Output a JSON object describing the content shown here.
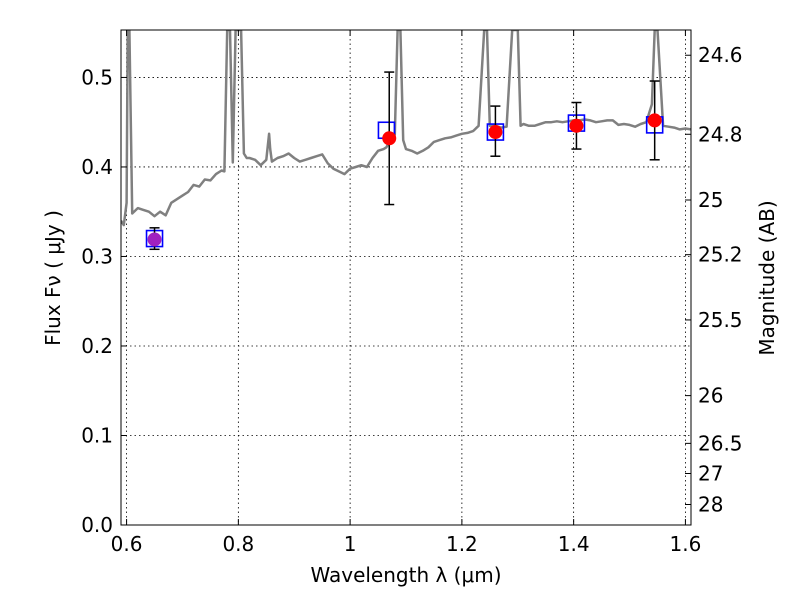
{
  "chart_data": {
    "type": "scatter",
    "xlabel": "Wavelength  λ (μm)",
    "ylabel_left": "Flux  Fν  ( μJy )",
    "ylabel_right": "Magnitude (AB)",
    "xlim": [
      0.59,
      1.61
    ],
    "ylim": [
      0.0,
      0.553
    ],
    "x_ticks": [
      0.6,
      0.8,
      1.0,
      1.2,
      1.4,
      1.6
    ],
    "x_tick_labels": [
      "0.6",
      "0.8",
      "1",
      "1.2",
      "1.4",
      "1.6"
    ],
    "y_ticks": [
      0.0,
      0.1,
      0.2,
      0.3,
      0.4,
      0.5
    ],
    "y_tick_labels": [
      "0.0",
      "0.1",
      "0.2",
      "0.3",
      "0.4",
      "0.5"
    ],
    "right_ticks": [
      {
        "label": "24.6",
        "mag": 24.6
      },
      {
        "label": "24.8",
        "mag": 24.8
      },
      {
        "label": "25",
        "mag": 25.0
      },
      {
        "label": "25.2",
        "mag": 25.2
      },
      {
        "label": "25.5",
        "mag": 25.5
      },
      {
        "label": "26",
        "mag": 26.0
      },
      {
        "label": "26.5",
        "mag": 26.5
      },
      {
        "label": "27",
        "mag": 27.0
      },
      {
        "label": "28",
        "mag": 28.0
      }
    ],
    "grid": true,
    "colors": {
      "spectrum": "#808080",
      "observed": "#ff0000",
      "observed_first": "#a020c0",
      "model_box": "#0000ff",
      "errorbar": "#000000"
    },
    "series": [
      {
        "name": "model spectrum",
        "kind": "line",
        "x": [
          0.59,
          0.595,
          0.6,
          0.602,
          0.605,
          0.61,
          0.62,
          0.63,
          0.64,
          0.65,
          0.66,
          0.67,
          0.68,
          0.69,
          0.7,
          0.71,
          0.72,
          0.73,
          0.74,
          0.75,
          0.76,
          0.77,
          0.775,
          0.78,
          0.785,
          0.79,
          0.795,
          0.8,
          0.805,
          0.81,
          0.815,
          0.82,
          0.83,
          0.84,
          0.85,
          0.855,
          0.857,
          0.86,
          0.87,
          0.88,
          0.89,
          0.9,
          0.91,
          0.92,
          0.93,
          0.94,
          0.95,
          0.96,
          0.97,
          0.98,
          0.99,
          1.0,
          1.01,
          1.02,
          1.03,
          1.04,
          1.05,
          1.06,
          1.065,
          1.07,
          1.08,
          1.085,
          1.09,
          1.095,
          1.1,
          1.11,
          1.12,
          1.13,
          1.14,
          1.15,
          1.16,
          1.17,
          1.18,
          1.19,
          1.2,
          1.21,
          1.22,
          1.23,
          1.24,
          1.245,
          1.25,
          1.26,
          1.27,
          1.28,
          1.29,
          1.3,
          1.305,
          1.31,
          1.32,
          1.33,
          1.34,
          1.35,
          1.36,
          1.37,
          1.38,
          1.39,
          1.4,
          1.41,
          1.42,
          1.43,
          1.44,
          1.45,
          1.46,
          1.47,
          1.48,
          1.49,
          1.5,
          1.51,
          1.52,
          1.53,
          1.54,
          1.545,
          1.55,
          1.56,
          1.57,
          1.58,
          1.59,
          1.6,
          1.61
        ],
        "y": [
          0.34,
          0.335,
          0.36,
          0.553,
          0.553,
          0.348,
          0.354,
          0.352,
          0.35,
          0.345,
          0.35,
          0.346,
          0.36,
          0.364,
          0.368,
          0.372,
          0.38,
          0.378,
          0.386,
          0.385,
          0.392,
          0.396,
          0.395,
          0.553,
          0.553,
          0.405,
          0.553,
          0.553,
          0.553,
          0.415,
          0.41,
          0.41,
          0.408,
          0.402,
          0.408,
          0.437,
          0.42,
          0.406,
          0.41,
          0.412,
          0.415,
          0.41,
          0.406,
          0.408,
          0.41,
          0.412,
          0.414,
          0.404,
          0.398,
          0.395,
          0.392,
          0.398,
          0.4,
          0.402,
          0.4,
          0.41,
          0.418,
          0.42,
          0.422,
          0.428,
          0.436,
          0.553,
          0.553,
          0.43,
          0.42,
          0.418,
          0.415,
          0.418,
          0.422,
          0.428,
          0.43,
          0.432,
          0.433,
          0.435,
          0.437,
          0.438,
          0.44,
          0.446,
          0.553,
          0.553,
          0.446,
          0.446,
          0.444,
          0.445,
          0.553,
          0.553,
          0.446,
          0.448,
          0.446,
          0.446,
          0.448,
          0.45,
          0.45,
          0.451,
          0.45,
          0.451,
          0.452,
          0.452,
          0.453,
          0.452,
          0.45,
          0.451,
          0.452,
          0.452,
          0.447,
          0.448,
          0.447,
          0.445,
          0.448,
          0.45,
          0.47,
          0.553,
          0.553,
          0.446,
          0.445,
          0.444,
          0.442,
          0.443,
          0.442
        ]
      },
      {
        "name": "model photometry",
        "kind": "box",
        "x": [
          0.65,
          1.065,
          1.26,
          1.405,
          1.545
        ],
        "y": [
          0.32,
          0.441,
          0.439,
          0.449,
          0.447
        ]
      },
      {
        "name": "observed photometry",
        "kind": "points",
        "x": [
          0.65,
          1.07,
          1.26,
          1.405,
          1.545
        ],
        "y": [
          0.319,
          0.432,
          0.439,
          0.446,
          0.452
        ],
        "yerr_low": [
          0.011,
          0.074,
          0.027,
          0.026,
          0.044
        ],
        "yerr_high": [
          0.013,
          0.074,
          0.029,
          0.026,
          0.044
        ]
      }
    ]
  }
}
